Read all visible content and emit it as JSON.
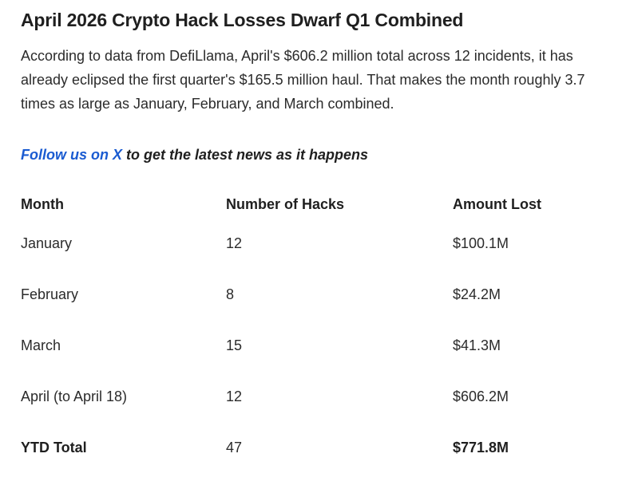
{
  "article": {
    "headline": "April 2026 Crypto Hack Losses Dwarf Q1 Combined",
    "body": "According to data from DefiLlama, April's $606.2 million total across 12 incidents, it has already eclipsed the first quarter's $165.5 million haul. That makes the month roughly 3.7 times as large as January, February, and March combined.",
    "follow_link_text": "Follow us on X",
    "follow_rest_text": " to get the latest news as it happens",
    "link_color": "#1a5bd1"
  },
  "table": {
    "headers": [
      "Month",
      "Number of Hacks",
      "Amount Lost"
    ],
    "rows": [
      {
        "month": "January",
        "hacks": "12",
        "amount": "$100.1M"
      },
      {
        "month": "February",
        "hacks": "8",
        "amount": "$24.2M"
      },
      {
        "month": "March",
        "hacks": "15",
        "amount": "$41.3M"
      },
      {
        "month": "April (to April 18)",
        "hacks": "12",
        "amount": "$606.2M"
      }
    ],
    "total": {
      "month": "YTD Total",
      "hacks": "47",
      "amount": "$771.8M"
    }
  }
}
